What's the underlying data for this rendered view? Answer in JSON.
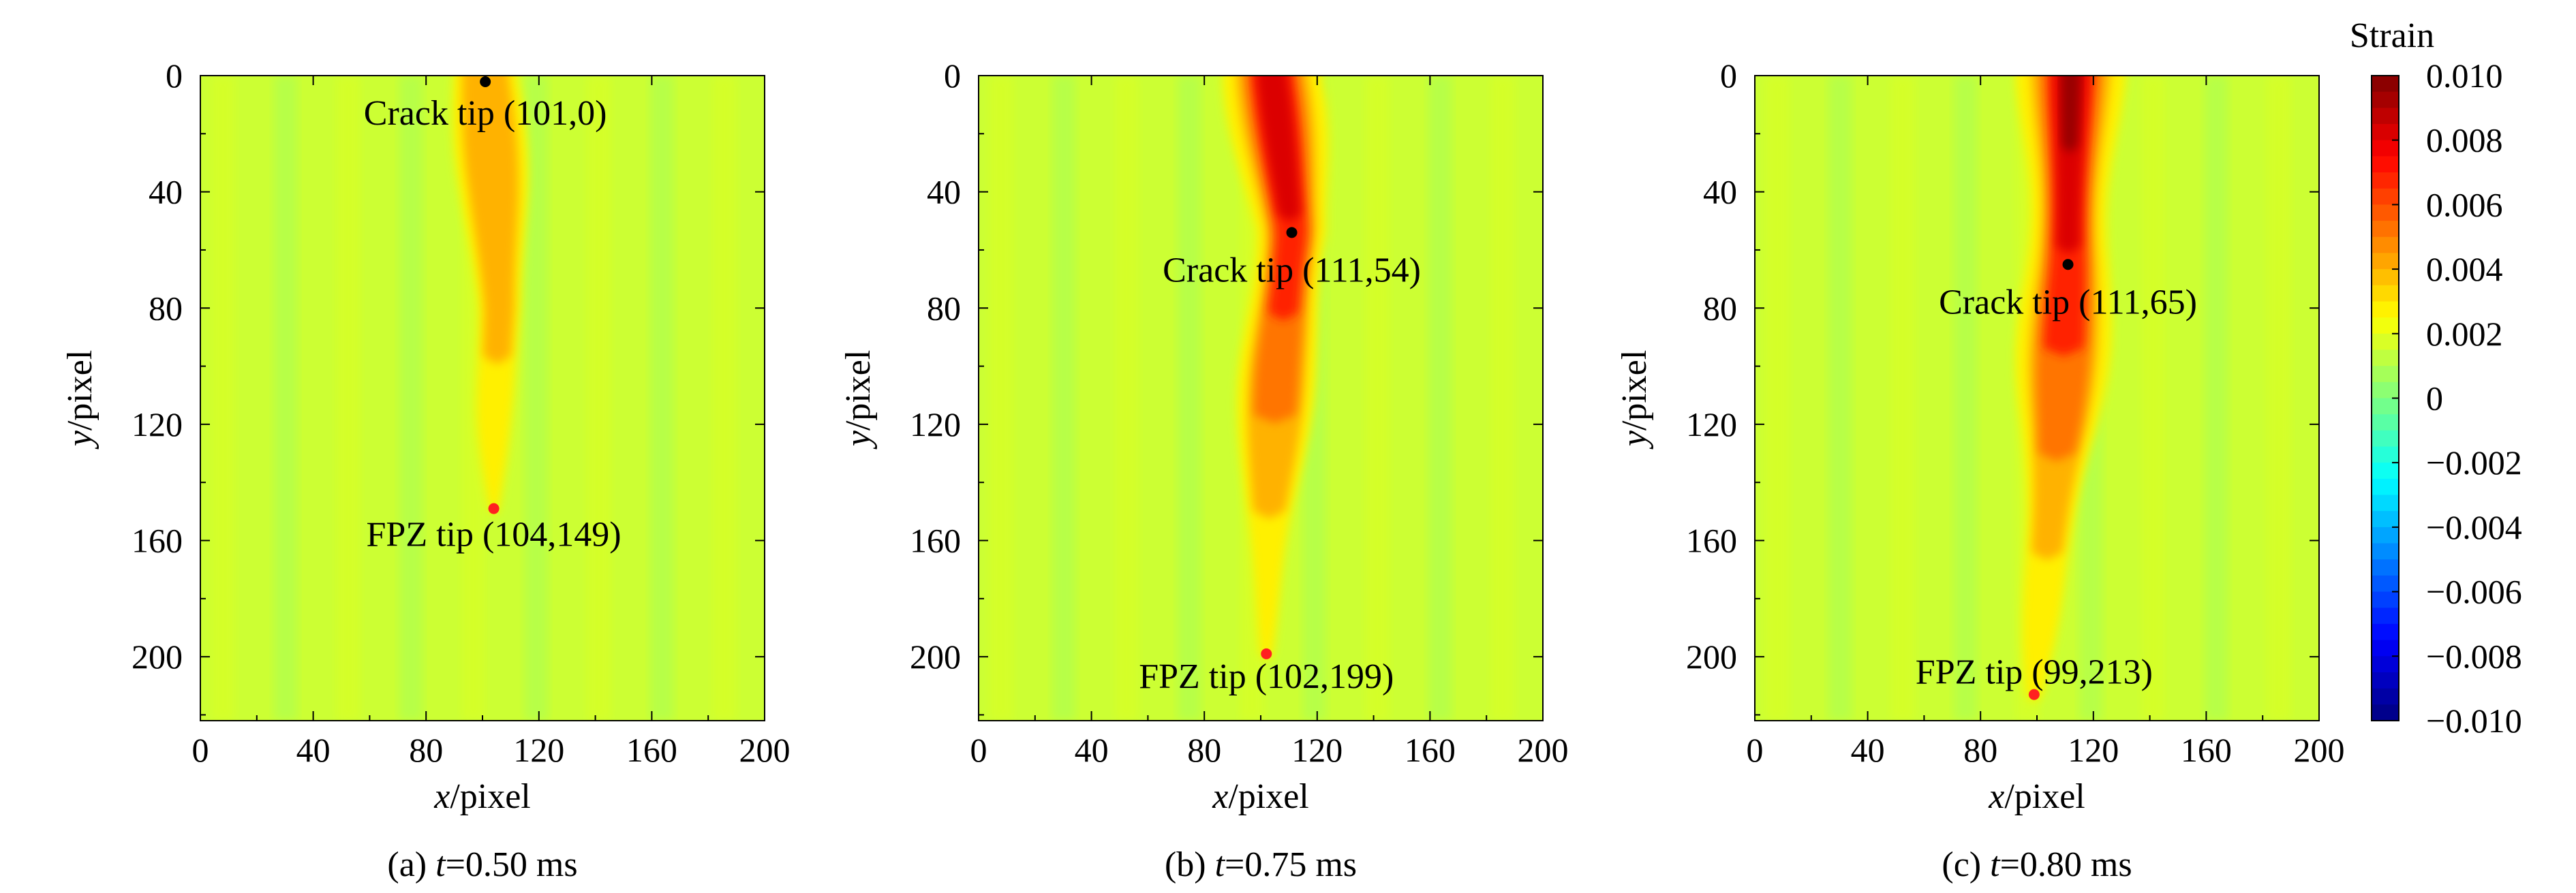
{
  "colorbar": {
    "title": "Strain",
    "min": -0.01,
    "max": 0.01,
    "tick_labels": [
      "0.010",
      "0.008",
      "0.006",
      "0.004",
      "0.002",
      "0",
      "−0.002",
      "−0.004",
      "−0.006",
      "−0.008",
      "−0.010"
    ],
    "tick_values": [
      0.01,
      0.008,
      0.006,
      0.004,
      0.002,
      0,
      -0.002,
      -0.004,
      -0.006,
      -0.008,
      -0.01
    ],
    "colors": [
      "#00007f",
      "#0000ff",
      "#007fff",
      "#00ffff",
      "#7fff7f",
      "#ffff00",
      "#ff7f00",
      "#ff0000",
      "#7f0000"
    ]
  },
  "chart_data": [
    {
      "type": "heatmap",
      "caption_prefix": "(a) ",
      "caption_var": "t",
      "caption_value": "=0.50 ms",
      "xlabel_var": "x",
      "xlabel_unit": "/pixel",
      "ylabel_var": "y",
      "ylabel_unit": "/pixel",
      "xlim": [
        0,
        200
      ],
      "ylim": [
        0,
        222
      ],
      "x_ticks": [
        0,
        40,
        80,
        120,
        160,
        200
      ],
      "y_ticks": [
        0,
        40,
        80,
        120,
        160,
        200
      ],
      "y_inverted": true,
      "background_strain": 0.0015,
      "band_profile": [
        {
          "y": 0,
          "x": 101
        },
        {
          "y": 40,
          "x": 104
        },
        {
          "y": 80,
          "x": 106
        },
        {
          "y": 120,
          "x": 104
        },
        {
          "y": 149,
          "x": 104
        }
      ],
      "points": [
        {
          "label": "Crack tip (101,0)",
          "x": 101,
          "y": 0,
          "color": "#000000"
        },
        {
          "label": "FPZ tip (104,149)",
          "x": 104,
          "y": 149,
          "color": "#ff2020"
        }
      ]
    },
    {
      "type": "heatmap",
      "caption_prefix": "(b) ",
      "caption_var": "t",
      "caption_value": "=0.75 ms",
      "xlabel_var": "x",
      "xlabel_unit": "/pixel",
      "ylabel_var": "y",
      "ylabel_unit": "/pixel",
      "xlim": [
        0,
        200
      ],
      "ylim": [
        0,
        222
      ],
      "x_ticks": [
        0,
        40,
        80,
        120,
        160,
        200
      ],
      "y_ticks": [
        0,
        40,
        80,
        120,
        160,
        200
      ],
      "y_inverted": true,
      "background_strain": 0.0015,
      "band_profile": [
        {
          "y": 0,
          "x": 104
        },
        {
          "y": 54,
          "x": 111
        },
        {
          "y": 100,
          "x": 106
        },
        {
          "y": 150,
          "x": 103
        },
        {
          "y": 199,
          "x": 102
        }
      ],
      "points": [
        {
          "label": "Crack tip (111,54)",
          "x": 111,
          "y": 54,
          "color": "#000000"
        },
        {
          "label": "FPZ tip (102,199)",
          "x": 102,
          "y": 199,
          "color": "#ff2020"
        }
      ]
    },
    {
      "type": "heatmap",
      "caption_prefix": "(c) ",
      "caption_var": "t",
      "caption_value": "=0.80 ms",
      "xlabel_var": "x",
      "xlabel_unit": "/pixel",
      "ylabel_var": "y",
      "ylabel_unit": "/pixel",
      "xlim": [
        0,
        200
      ],
      "ylim": [
        0,
        222
      ],
      "x_ticks": [
        0,
        40,
        80,
        120,
        160,
        200
      ],
      "y_ticks": [
        0,
        40,
        80,
        120,
        160,
        200
      ],
      "y_inverted": true,
      "background_strain": 0.0015,
      "band_profile": [
        {
          "y": 0,
          "x": 112
        },
        {
          "y": 65,
          "x": 111
        },
        {
          "y": 120,
          "x": 108
        },
        {
          "y": 170,
          "x": 103
        },
        {
          "y": 213,
          "x": 99
        }
      ],
      "points": [
        {
          "label": "Crack tip (111,65)",
          "x": 111,
          "y": 65,
          "color": "#000000"
        },
        {
          "label": "FPZ tip (99,213)",
          "x": 99,
          "y": 213,
          "color": "#ff2020"
        }
      ]
    }
  ]
}
